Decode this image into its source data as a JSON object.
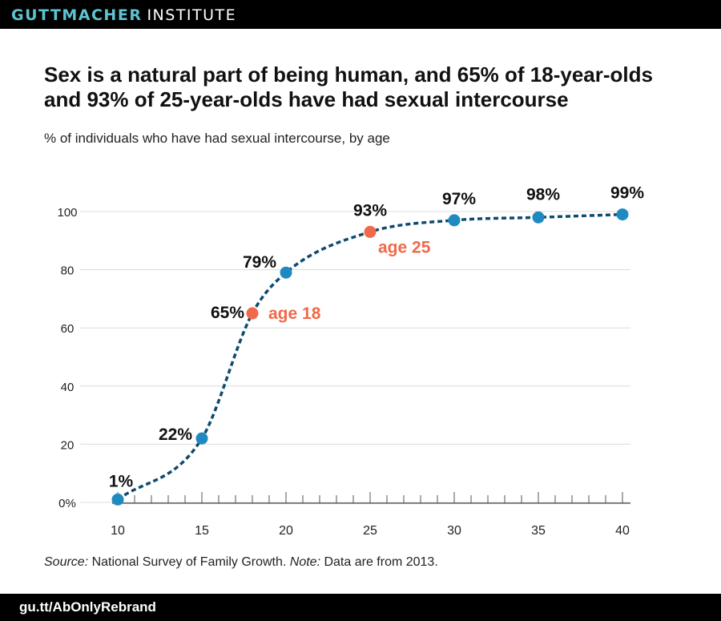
{
  "header": {
    "brand_bold": "GUTTMACHER",
    "brand_light": "INSTITUTE"
  },
  "title": "Sex is a natural part of being human, and 65% of 18-year-olds and 93% of 25-year-olds have had sexual intercourse",
  "subtitle": "% of individuals who have had sexual intercourse, by age",
  "footer": {
    "source_label": "Source:",
    "source_text": " National Survey of Family Growth. ",
    "note_label": "Note:",
    "note_text": " Data are from 2013.",
    "link": "gu.tt/AbOnlyRebrand"
  },
  "colors": {
    "line": "#0d4a6e",
    "point": "#1f8ac2",
    "highlight": "#f0694a",
    "brand": "#5ec3d1"
  },
  "chart_data": {
    "type": "line",
    "x": [
      10,
      15,
      18,
      20,
      25,
      30,
      35,
      40
    ],
    "values": [
      1,
      22,
      65,
      79,
      93,
      97,
      98,
      99
    ],
    "data_labels": [
      "1%",
      "22%",
      "65%",
      "79%",
      "93%",
      "97%",
      "98%",
      "99%"
    ],
    "highlights": [
      {
        "x": 18,
        "label": "age 18"
      },
      {
        "x": 25,
        "label": "age 25"
      }
    ],
    "x_ticks": [
      10,
      15,
      20,
      25,
      30,
      35,
      40
    ],
    "y_ticks": [
      0,
      20,
      40,
      60,
      80,
      100
    ],
    "y_tick_labels": [
      "0%",
      "20",
      "40",
      "60",
      "80",
      "100"
    ],
    "xlim": [
      10,
      40
    ],
    "ylim": [
      0,
      100
    ],
    "grid": true,
    "line_style": "dashed"
  }
}
